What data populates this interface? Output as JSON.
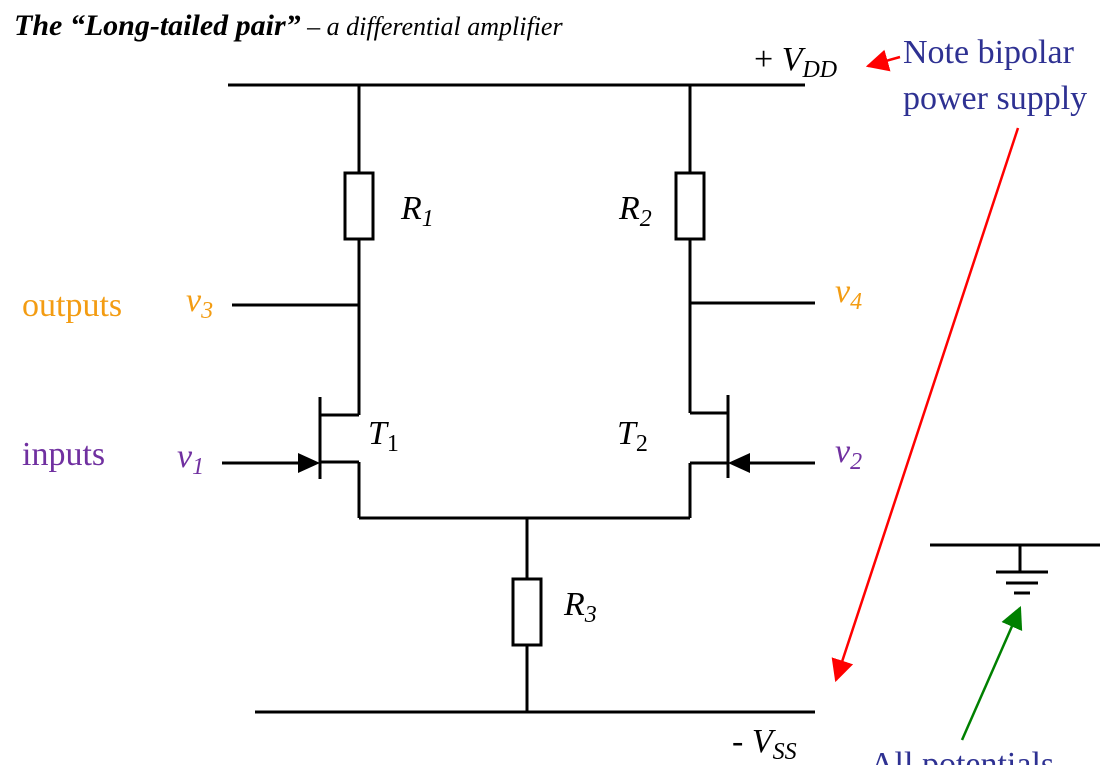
{
  "title": {
    "main": "The “Long-tailed pair”",
    "dash": " – ",
    "sub": "a differential amplifier"
  },
  "rails": {
    "vdd": {
      "prefix": "+ ",
      "symbol": "V",
      "subscript": "DD"
    },
    "vss": {
      "prefix": "- ",
      "symbol": "V",
      "subscript": "SS"
    }
  },
  "components": {
    "r1": {
      "symbol": "R",
      "subscript": "1"
    },
    "r2": {
      "symbol": "R",
      "subscript": "2"
    },
    "r3": {
      "symbol": "R",
      "subscript": "3"
    },
    "t1": {
      "symbol": "T",
      "subscript": "1"
    },
    "t2": {
      "symbol": "T",
      "subscript": "2"
    }
  },
  "signals": {
    "v1": {
      "symbol": "v",
      "subscript": "1"
    },
    "v2": {
      "symbol": "v",
      "subscript": "2"
    },
    "v3": {
      "symbol": "v",
      "subscript": "3"
    },
    "v4": {
      "symbol": "v",
      "subscript": "4"
    }
  },
  "labels": {
    "outputs": "outputs",
    "inputs": "inputs"
  },
  "annotations": {
    "bipolar_line1": "Note bipolar",
    "bipolar_line2": "power supply",
    "potentials": "All potentials"
  },
  "colors": {
    "wire": "#000000",
    "output_label": "#f39c12",
    "input_label": "#7030a0",
    "note_text": "#2e3192",
    "red_arrow": "#ff0000",
    "green_arrow": "#008000"
  }
}
